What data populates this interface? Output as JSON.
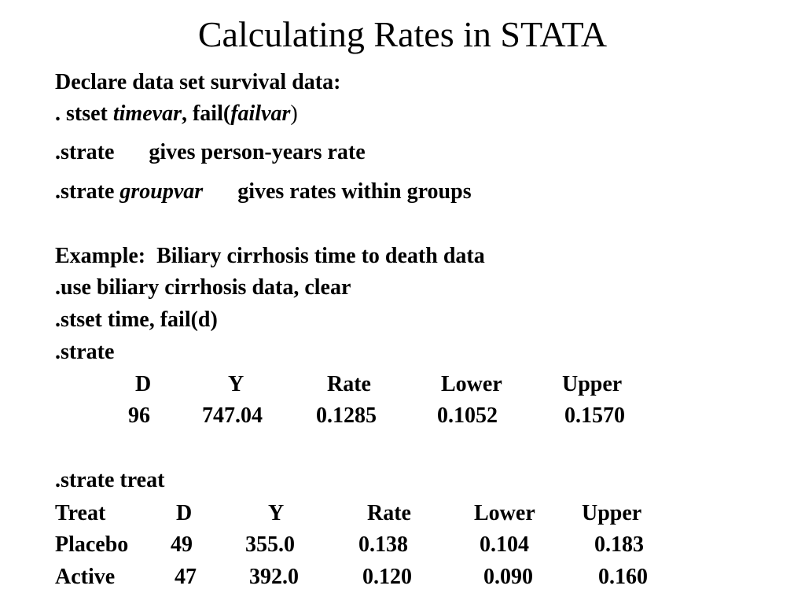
{
  "title": "Calculating Rates in STATA",
  "intro": {
    "declare": "Declare data set survival data:",
    "stset_prefix": ". stset ",
    "stset_timevar": "timevar",
    "stset_mid": ", fail(",
    "stset_failvar": "failvar",
    "stset_suffix": ")",
    "strate_cmd": ".strate",
    "strate_desc": "gives person-years rate",
    "strate_group_cmd": ".strate ",
    "strate_group_var": "groupvar",
    "strate_group_desc": "gives rates within groups"
  },
  "example": {
    "heading": "Example:  Biliary cirrhosis time to death data",
    "use_cmd": ".use biliary cirrhosis data, clear",
    "stset_cmd": ".stset time, fail(d)",
    "strate_cmd": ".strate"
  },
  "table1": {
    "headers": [
      "D",
      "Y",
      "Rate",
      "Lower",
      "Upper"
    ],
    "row": [
      "96",
      "747.04",
      "0.1285",
      "0.1052",
      "0.1570"
    ]
  },
  "treat_cmd": ".strate treat",
  "table2": {
    "headers": [
      "Treat",
      "D",
      "Y",
      "Rate",
      "Lower",
      "Upper"
    ],
    "rows": [
      [
        "Placebo",
        "49",
        "355.0",
        "0.138",
        "0.104",
        "0.183"
      ],
      [
        "Active",
        "47",
        "392.0",
        "0.120",
        "0.090",
        "0.160"
      ]
    ]
  }
}
